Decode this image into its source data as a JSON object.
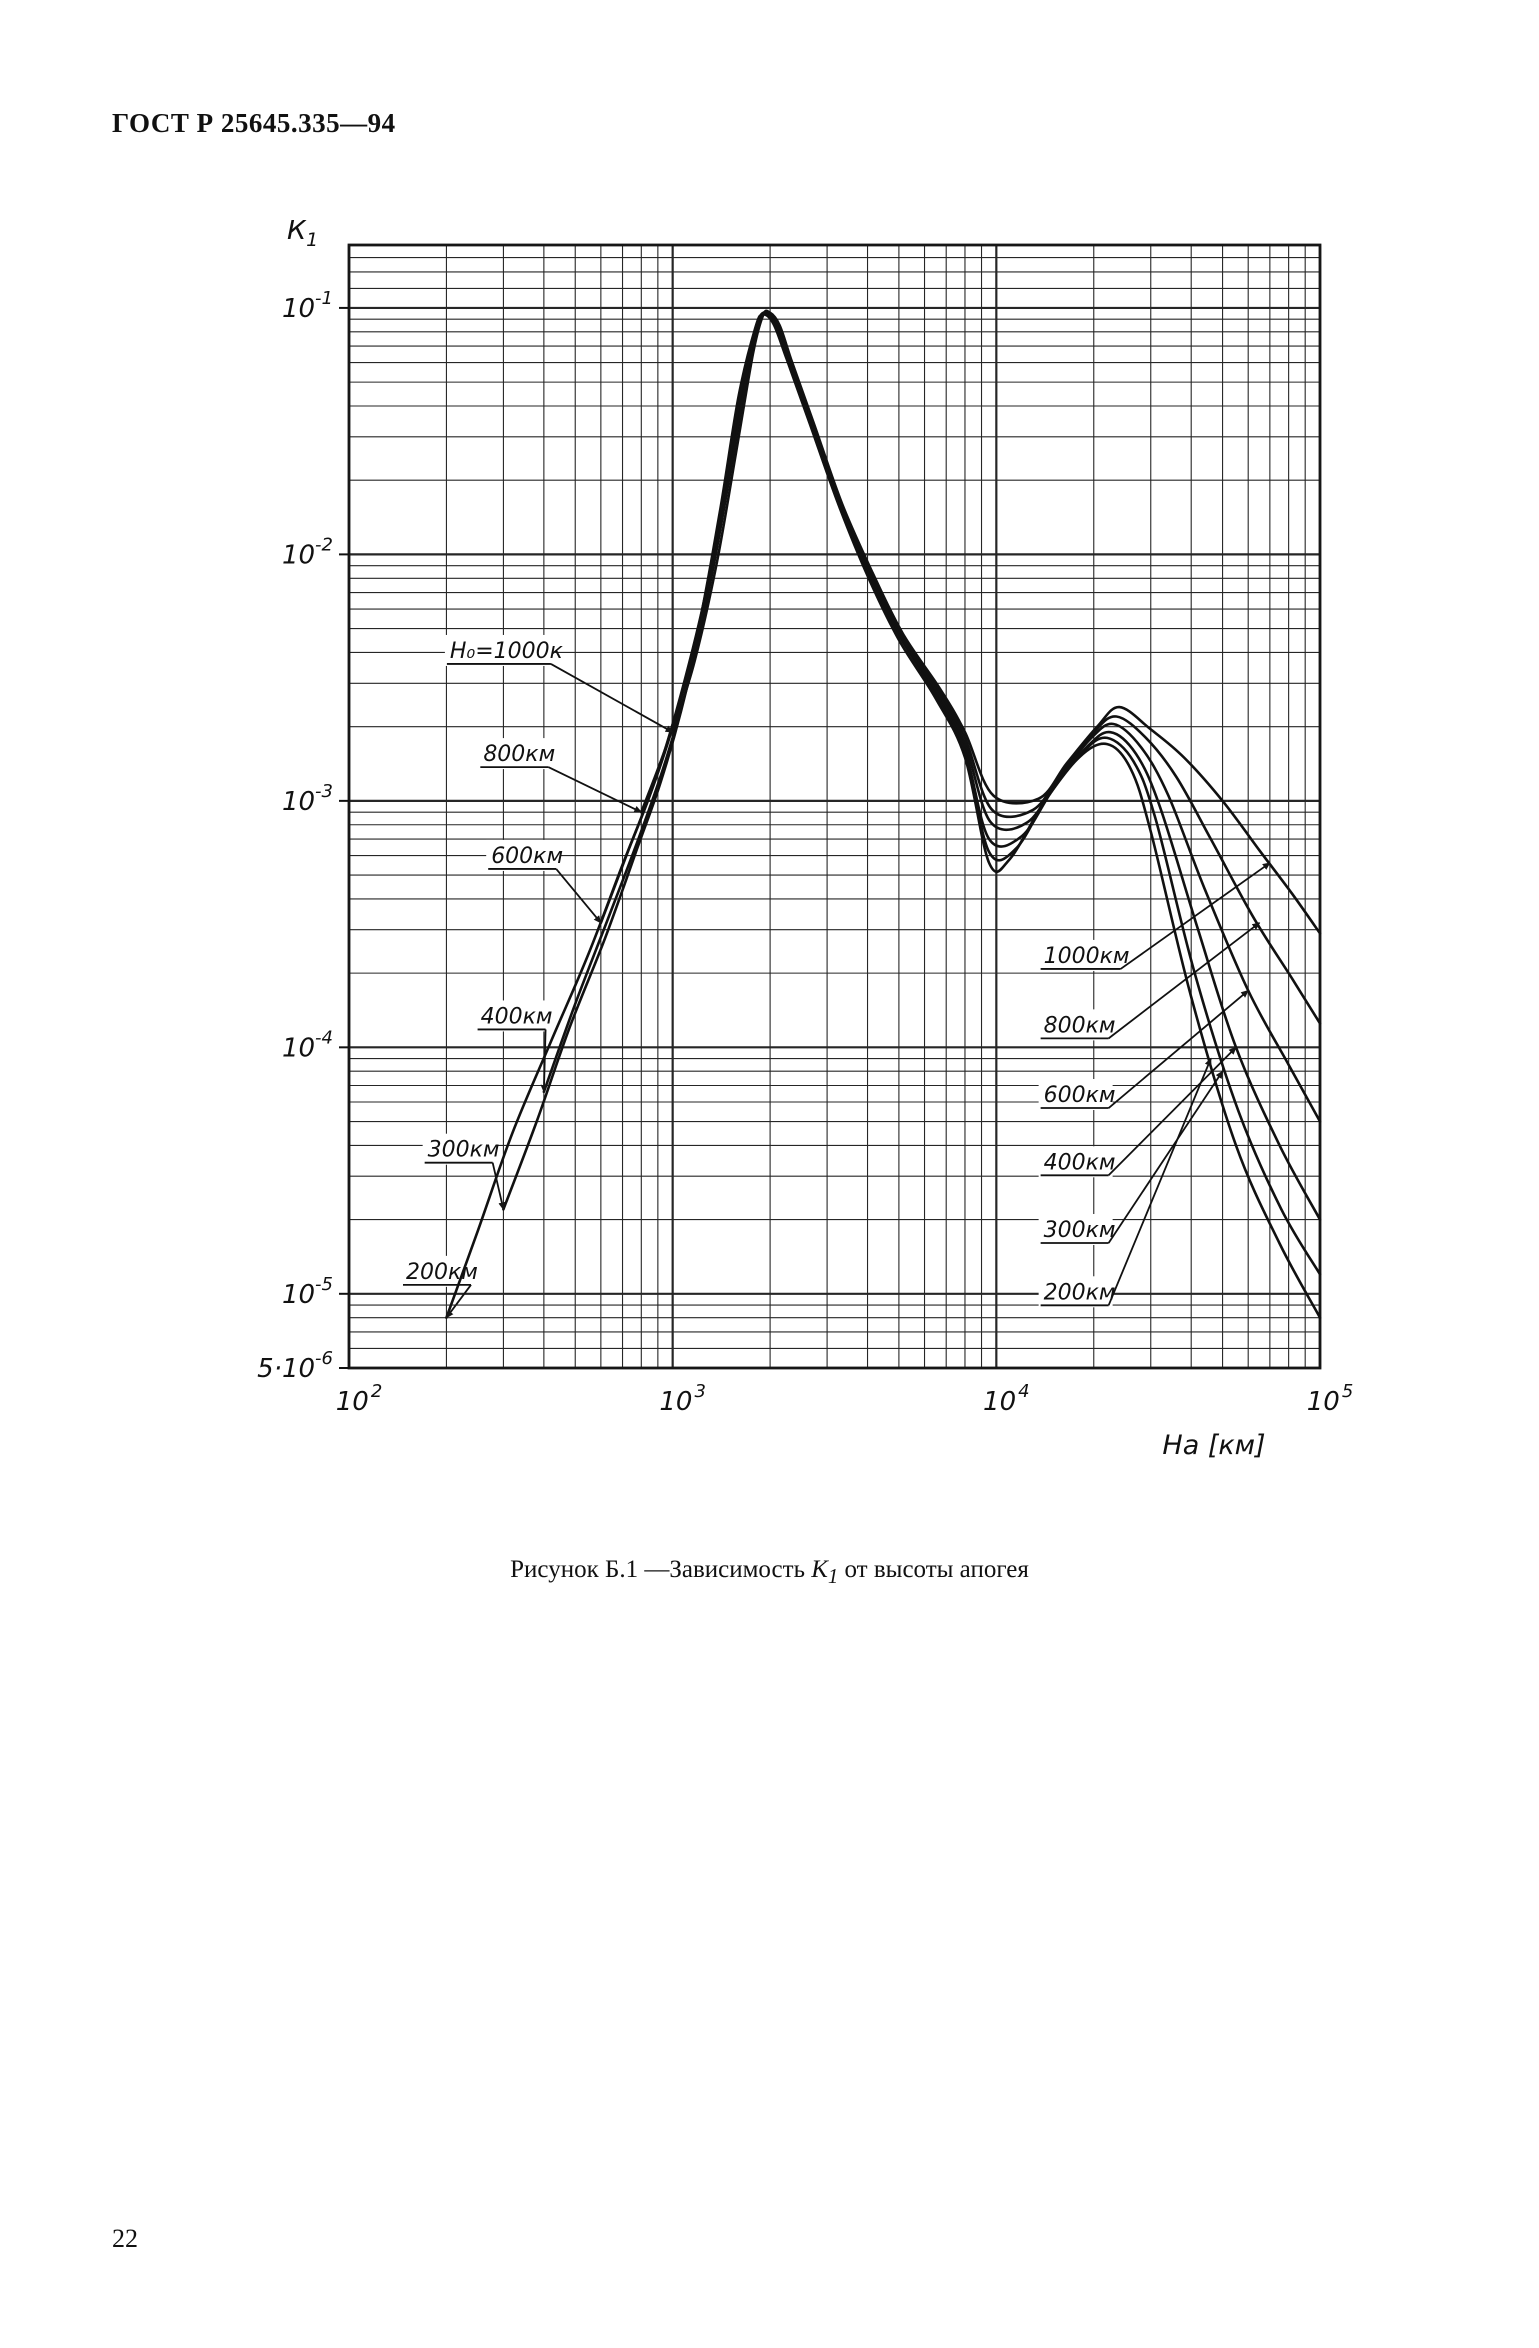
{
  "page": {
    "header": "ГОСТ Р 25645.335—94",
    "page_number": "22",
    "caption": {
      "prefix": "Рисунок Б.1 —Зависимость ",
      "symbol": "К",
      "symbol_sub": "1",
      "suffix": " от высоты апогея"
    }
  },
  "chart_data": {
    "type": "line",
    "title": "",
    "xlabel": "На [км]",
    "ylabel_base": "К",
    "ylabel_sub": "1",
    "x_scale": "log",
    "y_scale": "log",
    "xlim": [
      100,
      100000
    ],
    "ylim": [
      5e-06,
      0.18
    ],
    "grid": true,
    "x_ticks": [
      {
        "v": 100,
        "t": "10",
        "e": "2"
      },
      {
        "v": 1000,
        "t": "10",
        "e": "3"
      },
      {
        "v": 10000,
        "t": "10",
        "e": "4"
      },
      {
        "v": 100000,
        "t": "10",
        "e": "5"
      }
    ],
    "y_ticks": [
      {
        "v": 0.1,
        "p": "",
        "t": "10",
        "e": "-1"
      },
      {
        "v": 0.01,
        "p": "",
        "t": "10",
        "e": "-2"
      },
      {
        "v": 0.001,
        "p": "",
        "t": "10",
        "e": "-3"
      },
      {
        "v": 0.0001,
        "p": "",
        "t": "10",
        "e": "-4"
      },
      {
        "v": 1e-05,
        "p": "",
        "t": "10",
        "e": "-5"
      },
      {
        "v": 5e-06,
        "p": "5·",
        "t": "10",
        "e": "-6"
      }
    ],
    "y_extra_gridlines": [
      0.12,
      0.14,
      0.16
    ],
    "series": [
      {
        "name": "H0=200км",
        "points": [
          [
            200,
            8e-06
          ],
          [
            250,
            1.8e-05
          ],
          [
            320,
            4.5e-05
          ],
          [
            420,
            0.000105
          ],
          [
            550,
            0.00024
          ],
          [
            700,
            0.00055
          ],
          [
            850,
            0.00105
          ],
          [
            1000,
            0.002
          ],
          [
            1200,
            0.005
          ],
          [
            1400,
            0.015
          ],
          [
            1600,
            0.044
          ],
          [
            1800,
            0.083
          ],
          [
            1900,
            0.094
          ],
          [
            2050,
            0.086
          ],
          [
            2250,
            0.062
          ],
          [
            2650,
            0.034
          ],
          [
            3250,
            0.016
          ],
          [
            4000,
            0.0082
          ],
          [
            5000,
            0.0045
          ],
          [
            6500,
            0.0026
          ],
          [
            8000,
            0.0015
          ],
          [
            9500,
            0.00056
          ],
          [
            11000,
            0.00058
          ],
          [
            14000,
            0.00098
          ],
          [
            18000,
            0.0015
          ],
          [
            22000,
            0.0017
          ],
          [
            26000,
            0.00135
          ],
          [
            30000,
            0.00075
          ],
          [
            40000,
            0.00016
          ],
          [
            55000,
            4e-05
          ],
          [
            75000,
            1.6e-05
          ],
          [
            100000,
            8e-06
          ]
        ]
      },
      {
        "name": "H0=300км",
        "points": [
          [
            300,
            2.2e-05
          ],
          [
            380,
            5e-05
          ],
          [
            480,
            0.00012
          ],
          [
            620,
            0.00028
          ],
          [
            780,
            0.00065
          ],
          [
            920,
            0.0012
          ],
          [
            1060,
            0.0023
          ],
          [
            1250,
            0.0058
          ],
          [
            1450,
            0.017
          ],
          [
            1650,
            0.048
          ],
          [
            1830,
            0.086
          ],
          [
            1920,
            0.0945
          ],
          [
            2070,
            0.085
          ],
          [
            2270,
            0.061
          ],
          [
            2670,
            0.0335
          ],
          [
            3270,
            0.0158
          ],
          [
            4050,
            0.0082
          ],
          [
            5050,
            0.0046
          ],
          [
            6550,
            0.00265
          ],
          [
            8000,
            0.00155
          ],
          [
            9500,
            0.00062
          ],
          [
            11500,
            0.00064
          ],
          [
            14500,
            0.00105
          ],
          [
            18500,
            0.00158
          ],
          [
            22000,
            0.0018
          ],
          [
            26500,
            0.00145
          ],
          [
            31000,
            0.00085
          ],
          [
            41000,
            0.0002
          ],
          [
            56000,
            5.5e-05
          ],
          [
            76000,
            2.2e-05
          ],
          [
            100000,
            1.2e-05
          ]
        ]
      },
      {
        "name": "H0=400км",
        "points": [
          [
            400,
            6.6e-05
          ],
          [
            500,
            0.00015
          ],
          [
            630,
            0.00033
          ],
          [
            790,
            0.00072
          ],
          [
            950,
            0.00145
          ],
          [
            1120,
            0.0031
          ],
          [
            1320,
            0.0082
          ],
          [
            1520,
            0.023
          ],
          [
            1720,
            0.059
          ],
          [
            1870,
            0.09
          ],
          [
            1950,
            0.095
          ],
          [
            2100,
            0.083
          ],
          [
            2300,
            0.059
          ],
          [
            2700,
            0.0325
          ],
          [
            3300,
            0.0156
          ],
          [
            4100,
            0.0082
          ],
          [
            5100,
            0.0046
          ],
          [
            6600,
            0.0027
          ],
          [
            8000,
            0.0016
          ],
          [
            9500,
            0.0007
          ],
          [
            12000,
            0.00072
          ],
          [
            15000,
            0.00112
          ],
          [
            19000,
            0.00165
          ],
          [
            22500,
            0.0019
          ],
          [
            27000,
            0.00155
          ],
          [
            32000,
            0.00095
          ],
          [
            42000,
            0.0003
          ],
          [
            55000,
            0.0001
          ],
          [
            75000,
            4e-05
          ],
          [
            100000,
            2e-05
          ]
        ]
      },
      {
        "name": "H0=600км",
        "points": [
          [
            600,
            0.00032
          ],
          [
            730,
            0.00063
          ],
          [
            890,
            0.00125
          ],
          [
            1060,
            0.0027
          ],
          [
            1260,
            0.0068
          ],
          [
            1460,
            0.0195
          ],
          [
            1660,
            0.053
          ],
          [
            1840,
            0.088
          ],
          [
            1940,
            0.095
          ],
          [
            2080,
            0.084
          ],
          [
            2280,
            0.06
          ],
          [
            2680,
            0.033
          ],
          [
            3280,
            0.0157
          ],
          [
            4080,
            0.0083
          ],
          [
            5080,
            0.00465
          ],
          [
            6600,
            0.00275
          ],
          [
            8000,
            0.0017
          ],
          [
            9600,
            0.00082
          ],
          [
            12500,
            0.00082
          ],
          [
            15500,
            0.00122
          ],
          [
            19500,
            0.00178
          ],
          [
            23000,
            0.00205
          ],
          [
            28000,
            0.00165
          ],
          [
            34000,
            0.00105
          ],
          [
            44000,
            0.00044
          ],
          [
            60000,
            0.00017
          ],
          [
            80000,
            8.5e-05
          ],
          [
            100000,
            5e-05
          ]
        ]
      },
      {
        "name": "H0=800км",
        "points": [
          [
            800,
            0.0009
          ],
          [
            960,
            0.0017
          ],
          [
            1130,
            0.0035
          ],
          [
            1330,
            0.0088
          ],
          [
            1530,
            0.0245
          ],
          [
            1730,
            0.061
          ],
          [
            1880,
            0.091
          ],
          [
            1970,
            0.0955
          ],
          [
            2120,
            0.084
          ],
          [
            2320,
            0.0595
          ],
          [
            2720,
            0.033
          ],
          [
            3320,
            0.0158
          ],
          [
            4120,
            0.00835
          ],
          [
            5120,
            0.0047
          ],
          [
            6650,
            0.0028
          ],
          [
            8000,
            0.0018
          ],
          [
            9700,
            0.00092
          ],
          [
            13000,
            0.00092
          ],
          [
            16000,
            0.00132
          ],
          [
            20000,
            0.0019
          ],
          [
            23500,
            0.0022
          ],
          [
            29000,
            0.0018
          ],
          [
            36000,
            0.00125
          ],
          [
            46000,
            0.0007
          ],
          [
            62000,
            0.00034
          ],
          [
            82000,
            0.00019
          ],
          [
            100000,
            0.000125
          ]
        ]
      },
      {
        "name": "H0=1000км",
        "points": [
          [
            1000,
            0.0019
          ],
          [
            1170,
            0.0037
          ],
          [
            1370,
            0.0093
          ],
          [
            1570,
            0.026
          ],
          [
            1770,
            0.065
          ],
          [
            1900,
            0.093
          ],
          [
            1990,
            0.096
          ],
          [
            2140,
            0.085
          ],
          [
            2340,
            0.06
          ],
          [
            2740,
            0.0335
          ],
          [
            3340,
            0.016
          ],
          [
            4150,
            0.0084
          ],
          [
            5150,
            0.00475
          ],
          [
            6700,
            0.00285
          ],
          [
            8000,
            0.0019
          ],
          [
            9800,
            0.00105
          ],
          [
            13500,
            0.00102
          ],
          [
            16500,
            0.00142
          ],
          [
            20500,
            0.002
          ],
          [
            24000,
            0.0024
          ],
          [
            30000,
            0.00195
          ],
          [
            38000,
            0.0015
          ],
          [
            50000,
            0.001
          ],
          [
            65000,
            0.00063
          ],
          [
            82000,
            0.00042
          ],
          [
            100000,
            0.00029
          ]
        ]
      }
    ],
    "annotations_left": [
      {
        "text": "Н₀=1000к",
        "lx": 205,
        "ly": 0.0038,
        "tx": 1000,
        "ty": 0.0019
      },
      {
        "text": "800км",
        "lx": 260,
        "ly": 0.00145,
        "tx": 800,
        "ty": 0.0009
      },
      {
        "text": "600км",
        "lx": 275,
        "ly": 0.00056,
        "tx": 600,
        "ty": 0.00032
      },
      {
        "text": "400км",
        "lx": 255,
        "ly": 0.000125,
        "tx": 400,
        "ty": 6.6e-05
      },
      {
        "text": "300км",
        "lx": 175,
        "ly": 3.6e-05,
        "tx": 300,
        "ty": 2.2e-05
      },
      {
        "text": "200км",
        "lx": 150,
        "ly": 1.15e-05,
        "tx": 200,
        "ty": 8e-06
      }
    ],
    "annotations_right": [
      {
        "text": "1000км",
        "lx": 14000,
        "ly": 0.00022,
        "tx": 70000,
        "ty": 0.00056
      },
      {
        "text": "800км",
        "lx": 14000,
        "ly": 0.000115,
        "tx": 65000,
        "ty": 0.00032
      },
      {
        "text": "600км",
        "lx": 14000,
        "ly": 6e-05,
        "tx": 60000,
        "ty": 0.00017
      },
      {
        "text": "400км",
        "lx": 14000,
        "ly": 3.2e-05,
        "tx": 55000,
        "ty": 0.0001
      },
      {
        "text": "300км",
        "lx": 14000,
        "ly": 1.7e-05,
        "tx": 50000,
        "ty": 8e-05
      },
      {
        "text": "200км",
        "lx": 14000,
        "ly": 9.5e-06,
        "tx": 46000,
        "ty": 9e-05
      }
    ]
  }
}
